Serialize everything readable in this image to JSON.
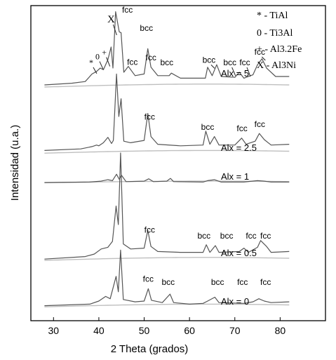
{
  "chart_data": {
    "type": "line",
    "xlabel": "2 Theta (grados)",
    "ylabel": "Intensidad (u.a.)",
    "xlim": [
      25,
      90
    ],
    "x_ticks": [
      "30",
      "40",
      "50",
      "60",
      "70",
      "80"
    ],
    "x_tick_values": [
      30,
      40,
      50,
      60,
      70,
      80
    ],
    "y_ticks": "none",
    "legend": {
      "placement": "top-right",
      "entries": [
        {
          "symbol": "*",
          "phase": "TiAl",
          "label": "* - TiAl"
        },
        {
          "symbol": "0",
          "phase": "Ti3Al",
          "label": "0 - Ti3Al"
        },
        {
          "symbol": "+",
          "phase": "Al3.2Fe",
          "label": "+ - Al3.2Fe"
        },
        {
          "symbol": "X",
          "phase": "Al3Ni",
          "label": "X - Al3Ni"
        }
      ]
    },
    "series": [
      {
        "name": "Alx = 5",
        "points": [
          [
            28,
            0.5
          ],
          [
            34,
            0.7
          ],
          [
            37,
            0.9
          ],
          [
            38.5,
            1.8
          ],
          [
            39.5,
            2.1
          ],
          [
            40.3,
            2.5
          ],
          [
            41,
            2.3
          ],
          [
            42,
            3.5
          ],
          [
            42.7,
            5.0
          ],
          [
            43.1,
            2.5
          ],
          [
            43.7,
            9.2
          ],
          [
            44.5,
            6.8
          ],
          [
            44.9,
            6.7
          ],
          [
            45.5,
            2.0
          ],
          [
            46.5,
            2.7
          ],
          [
            48,
            1.6
          ],
          [
            50,
            1.8
          ],
          [
            50.8,
            4.8
          ],
          [
            51.5,
            2.6
          ],
          [
            53,
            1.6
          ],
          [
            55.5,
            1.6
          ],
          [
            56,
            1.9
          ],
          [
            58,
            1.3
          ],
          [
            60,
            1.3
          ],
          [
            63.5,
            1.3
          ],
          [
            64,
            2.6
          ],
          [
            65,
            1.6
          ],
          [
            66,
            2.9
          ],
          [
            67,
            1.5
          ],
          [
            70,
            1.4
          ],
          [
            71,
            2.0
          ],
          [
            72,
            1.3
          ],
          [
            74,
            1.7
          ],
          [
            75,
            2.9
          ],
          [
            76,
            3.6
          ],
          [
            77,
            2.5
          ],
          [
            79,
            1.5
          ],
          [
            82,
            1.5
          ]
        ],
        "annotations": [
          {
            "label": "*",
            "x": 38.3
          },
          {
            "label": "0",
            "x": 39.7
          },
          {
            "label": "+",
            "x": 41.2
          },
          {
            "label": "X",
            "x": 42.7
          },
          {
            "label": "fcc",
            "x": 46.3
          },
          {
            "label": "bcc",
            "x": 50.5
          },
          {
            "label": "fcc",
            "x": 47.4
          },
          {
            "label": "fcc",
            "x": 51.5
          },
          {
            "label": "bcc",
            "x": 55.0
          },
          {
            "label": "bcc",
            "x": 64.3
          },
          {
            "label": "bcc",
            "x": 68.9
          },
          {
            "label": "fcc",
            "x": 72.2
          },
          {
            "label": "fcc",
            "x": 75.5
          }
        ]
      },
      {
        "name": "Alx = 2.5",
        "points": [
          [
            28,
            0.6
          ],
          [
            36,
            0.8
          ],
          [
            38.5,
            1.1
          ],
          [
            39.5,
            1.3
          ],
          [
            40,
            1.2
          ],
          [
            41,
            1.6
          ],
          [
            42,
            2.3
          ],
          [
            42.8,
            1.5
          ],
          [
            43.2,
            1.9
          ],
          [
            43.9,
            10.5
          ],
          [
            44.4,
            5.0
          ],
          [
            44.9,
            7.3
          ],
          [
            45.5,
            1.8
          ],
          [
            47,
            1.6
          ],
          [
            50,
            1.9
          ],
          [
            50.8,
            5.4
          ],
          [
            51.5,
            2.4
          ],
          [
            53,
            1.4
          ],
          [
            58,
            1.2
          ],
          [
            63,
            1.3
          ],
          [
            63.6,
            3.1
          ],
          [
            64.5,
            1.4
          ],
          [
            65.5,
            2.4
          ],
          [
            66.5,
            1.3
          ],
          [
            70,
            1.3
          ],
          [
            71.5,
            2.2
          ],
          [
            72.5,
            1.4
          ],
          [
            74.5,
            1.8
          ],
          [
            75.4,
            2.8
          ],
          [
            76.5,
            2.0
          ],
          [
            78,
            1.3
          ],
          [
            82,
            1.4
          ]
        ],
        "annotations": [
          {
            "label": "fcc",
            "x": 51.2
          },
          {
            "label": "bcc",
            "x": 64.0
          },
          {
            "label": "fcc",
            "x": 71.6
          },
          {
            "label": "fcc",
            "x": 75.5
          }
        ]
      },
      {
        "name": "Alx = 1",
        "points": [
          [
            28,
            0.3
          ],
          [
            38,
            0.4
          ],
          [
            40.5,
            0.6
          ],
          [
            42,
            0.9
          ],
          [
            43,
            0.7
          ],
          [
            43.9,
            2.1
          ],
          [
            44.5,
            1.0
          ],
          [
            45,
            1.9
          ],
          [
            46,
            0.5
          ],
          [
            50,
            0.6
          ],
          [
            51,
            1.1
          ],
          [
            52,
            0.5
          ],
          [
            55,
            0.6
          ],
          [
            55.8,
            1.2
          ],
          [
            56.5,
            0.5
          ],
          [
            63,
            0.4
          ],
          [
            64,
            0.7
          ],
          [
            65.5,
            0.9
          ],
          [
            67,
            0.4
          ],
          [
            72,
            0.4
          ],
          [
            75,
            0.7
          ],
          [
            76.5,
            0.6
          ],
          [
            78,
            0.4
          ],
          [
            82,
            0.4
          ]
        ]
      },
      {
        "name": "Alx = 0.5",
        "points": [
          [
            28,
            0.4
          ],
          [
            37,
            0.7
          ],
          [
            39,
            1.0
          ],
          [
            40.5,
            1.6
          ],
          [
            42,
            1.8
          ],
          [
            43,
            2.5
          ],
          [
            43.8,
            6.7
          ],
          [
            44.3,
            4.5
          ],
          [
            44.8,
            13.0
          ],
          [
            45.4,
            2.2
          ],
          [
            47,
            1.6
          ],
          [
            50,
            1.7
          ],
          [
            50.8,
            3.8
          ],
          [
            51.5,
            1.9
          ],
          [
            53,
            1.3
          ],
          [
            58,
            1.2
          ],
          [
            63,
            1.2
          ],
          [
            63.7,
            2.1
          ],
          [
            64.5,
            1.2
          ],
          [
            65.7,
            2.0
          ],
          [
            66.5,
            1.2
          ],
          [
            71,
            1.3
          ],
          [
            72,
            1.7
          ],
          [
            73,
            1.2
          ],
          [
            75,
            1.8
          ],
          [
            75.7,
            2.6
          ],
          [
            77,
            1.9
          ],
          [
            78,
            1.2
          ],
          [
            82,
            1.3
          ]
        ],
        "annotations": [
          {
            "label": "fcc",
            "x": 51.2
          },
          {
            "label": "bcc",
            "x": 63.2
          },
          {
            "label": "bcc",
            "x": 68.2
          },
          {
            "label": "fcc",
            "x": 73.6
          },
          {
            "label": "fcc",
            "x": 76.8
          }
        ]
      },
      {
        "name": "Alx = 0",
        "points": [
          [
            28,
            0.4
          ],
          [
            38,
            0.6
          ],
          [
            40,
            1.0
          ],
          [
            41.5,
            1.6
          ],
          [
            42.5,
            1.3
          ],
          [
            43.8,
            4.2
          ],
          [
            44.3,
            2.2
          ],
          [
            44.8,
            7.6
          ],
          [
            45.4,
            1.2
          ],
          [
            48,
            0.9
          ],
          [
            50,
            1.0
          ],
          [
            50.9,
            2.6
          ],
          [
            51.6,
            1.1
          ],
          [
            54,
            0.8
          ],
          [
            55.7,
            1.9
          ],
          [
            56.5,
            0.8
          ],
          [
            60,
            0.6
          ],
          [
            63,
            0.7
          ],
          [
            64,
            1.0
          ],
          [
            65.6,
            1.5
          ],
          [
            66.5,
            0.8
          ],
          [
            72,
            0.7
          ],
          [
            74,
            0.9
          ],
          [
            75.3,
            1.3
          ],
          [
            76.5,
            1.0
          ],
          [
            78,
            0.8
          ],
          [
            82,
            0.9
          ]
        ],
        "annotations": [
          {
            "label": "fcc",
            "x": 50.9
          },
          {
            "label": "bcc",
            "x": 55.3
          },
          {
            "label": "bcc",
            "x": 66.2
          },
          {
            "label": "fcc",
            "x": 71.7
          },
          {
            "label": "fcc",
            "x": 76.8
          }
        ]
      }
    ]
  },
  "colors": {
    "trace": "#555555",
    "baseline": "#bfbfbf",
    "marker_line": "#222222",
    "axis": "#000000"
  }
}
